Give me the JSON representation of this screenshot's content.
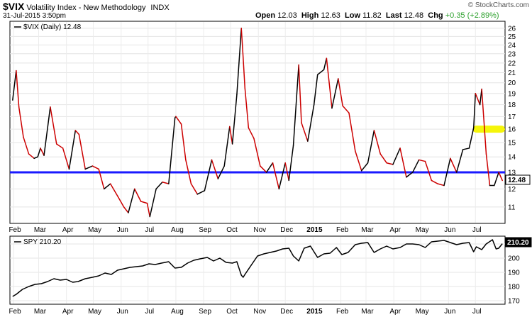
{
  "header": {
    "symbol": "$VIX",
    "description": "Volatility Index - New Methodology",
    "exchange": "INDX",
    "datetime": "31-Jul-2015 3:50pm",
    "open_label": "Open",
    "open": "12.03",
    "high_label": "High",
    "high": "12.63",
    "low_label": "Low",
    "low": "11.82",
    "last_label": "Last",
    "last": "12.48",
    "chg_label": "Chg",
    "chg": "+0.35 (+2.89%)",
    "brand": "© StockCharts.com"
  },
  "chart_data": [
    {
      "type": "line",
      "legend": "$VIX (Daily) 12.48",
      "last_value": "12.48",
      "scale": "log",
      "ylim": [
        10.2,
        26.8
      ],
      "y_ticks": [
        "11",
        "12",
        "13",
        "14",
        "15",
        "16",
        "17",
        "18",
        "19",
        "20",
        "21",
        "22",
        "23",
        "24",
        "25",
        "26"
      ],
      "x_labels": [
        "Feb",
        "Mar",
        "Apr",
        "May",
        "Jun",
        "Jul",
        "Aug",
        "Sep",
        "Oct",
        "Nov",
        "Dec",
        "2015",
        "Feb",
        "Mar",
        "Apr",
        "May",
        "Jun",
        "Jul"
      ],
      "line_colors": {
        "up": "#000000",
        "down": "#cc0000"
      },
      "horizontal_line": {
        "value": 13,
        "color": "#1a1aff"
      },
      "highlight": {
        "value": 16.0,
        "color": "#f5f50a"
      },
      "x": [
        "2014-01-31",
        "2014-02-04",
        "2014-02-07",
        "2014-02-12",
        "2014-02-18",
        "2014-02-24",
        "2014-02-28",
        "2014-03-03",
        "2014-03-07",
        "2014-03-14",
        "2014-03-21",
        "2014-03-28",
        "2014-04-04",
        "2014-04-11",
        "2014-04-15",
        "2014-04-22",
        "2014-04-30",
        "2014-05-07",
        "2014-05-13",
        "2014-05-20",
        "2014-05-28",
        "2014-06-04",
        "2014-06-09",
        "2014-06-16",
        "2014-06-23",
        "2014-06-30",
        "2014-07-03",
        "2014-07-10",
        "2014-07-17",
        "2014-07-24",
        "2014-07-31",
        "2014-08-01",
        "2014-08-07",
        "2014-08-12",
        "2014-08-18",
        "2014-08-25",
        "2014-09-02",
        "2014-09-10",
        "2014-09-17",
        "2014-09-24",
        "2014-09-30",
        "2014-10-03",
        "2014-10-08",
        "2014-10-13",
        "2014-10-15",
        "2014-10-17",
        "2014-10-21",
        "2014-10-27",
        "2014-11-03",
        "2014-11-10",
        "2014-11-17",
        "2014-11-24",
        "2014-12-01",
        "2014-12-05",
        "2014-12-10",
        "2014-12-16",
        "2014-12-19",
        "2014-12-26",
        "2015-01-02",
        "2015-01-06",
        "2015-01-13",
        "2015-01-16",
        "2015-01-22",
        "2015-01-29",
        "2015-02-03",
        "2015-02-10",
        "2015-02-17",
        "2015-02-24",
        "2015-03-03",
        "2015-03-10",
        "2015-03-17",
        "2015-03-24",
        "2015-03-31",
        "2015-04-08",
        "2015-04-15",
        "2015-04-22",
        "2015-04-29",
        "2015-05-06",
        "2015-05-13",
        "2015-05-20",
        "2015-05-27",
        "2015-06-03",
        "2015-06-10",
        "2015-06-17",
        "2015-06-24",
        "2015-06-29",
        "2015-07-01",
        "2015-07-06",
        "2015-07-08",
        "2015-07-13",
        "2015-07-17",
        "2015-07-22",
        "2015-07-27",
        "2015-07-31"
      ],
      "values": [
        18.4,
        21.2,
        17.8,
        15.4,
        14.2,
        13.9,
        14.0,
        14.6,
        14.1,
        17.8,
        14.9,
        14.6,
        13.2,
        15.9,
        15.6,
        13.2,
        13.4,
        13.2,
        12.0,
        12.3,
        11.6,
        11.0,
        10.7,
        12.0,
        11.3,
        11.2,
        10.5,
        12.0,
        12.4,
        12.3,
        16.9,
        17.0,
        16.4,
        13.8,
        12.3,
        11.7,
        11.9,
        13.8,
        12.6,
        13.4,
        16.2,
        14.9,
        18.9,
        26.0,
        22.6,
        19.5,
        16.1,
        15.3,
        13.4,
        13.0,
        13.6,
        12.0,
        13.6,
        12.5,
        14.8,
        21.8,
        16.5,
        15.1,
        18.0,
        20.8,
        21.3,
        22.5,
        17.7,
        20.4,
        17.9,
        17.3,
        14.4,
        13.1,
        13.6,
        15.9,
        14.2,
        13.6,
        13.5,
        14.6,
        12.7,
        13.0,
        13.8,
        13.7,
        12.5,
        12.3,
        12.2,
        13.9,
        13.0,
        14.5,
        14.6,
        16.1,
        19.0,
        18.0,
        19.4,
        14.2,
        12.2,
        12.2,
        13.0,
        12.5
      ]
    },
    {
      "type": "line",
      "legend": "SPY 210.20",
      "last_value": "210.20",
      "ylim": [
        168,
        215
      ],
      "y_ticks": [
        "170",
        "180",
        "190",
        "200",
        "210"
      ],
      "x_labels": [
        "Feb",
        "Mar",
        "Apr",
        "May",
        "Jun",
        "Jul",
        "Aug",
        "Sep",
        "Oct",
        "Nov",
        "Dec",
        "2015",
        "Feb",
        "Mar",
        "Apr",
        "May",
        "Jun",
        "Jul"
      ],
      "line_color": "#000000",
      "x": [
        "2014-01-31",
        "2014-02-04",
        "2014-02-11",
        "2014-02-18",
        "2014-02-25",
        "2014-03-04",
        "2014-03-11",
        "2014-03-18",
        "2014-03-25",
        "2014-04-01",
        "2014-04-08",
        "2014-04-14",
        "2014-04-22",
        "2014-04-30",
        "2014-05-07",
        "2014-05-14",
        "2014-05-21",
        "2014-05-28",
        "2014-06-04",
        "2014-06-11",
        "2014-06-18",
        "2014-06-25",
        "2014-07-02",
        "2014-07-09",
        "2014-07-16",
        "2014-07-24",
        "2014-07-31",
        "2014-08-07",
        "2014-08-14",
        "2014-08-21",
        "2014-08-28",
        "2014-09-05",
        "2014-09-12",
        "2014-09-19",
        "2014-09-26",
        "2014-10-03",
        "2014-10-08",
        "2014-10-13",
        "2014-10-15",
        "2014-10-17",
        "2014-10-24",
        "2014-10-31",
        "2014-11-07",
        "2014-11-14",
        "2014-11-21",
        "2014-11-28",
        "2014-12-05",
        "2014-12-10",
        "2014-12-16",
        "2014-12-22",
        "2014-12-29",
        "2015-01-06",
        "2015-01-13",
        "2015-01-20",
        "2015-01-27",
        "2015-02-02",
        "2015-02-09",
        "2015-02-17",
        "2015-02-24",
        "2015-03-03",
        "2015-03-10",
        "2015-03-17",
        "2015-03-24",
        "2015-03-31",
        "2015-04-08",
        "2015-04-15",
        "2015-04-22",
        "2015-04-29",
        "2015-05-06",
        "2015-05-13",
        "2015-05-20",
        "2015-05-27",
        "2015-06-03",
        "2015-06-10",
        "2015-06-17",
        "2015-06-24",
        "2015-06-29",
        "2015-07-02",
        "2015-07-08",
        "2015-07-13",
        "2015-07-20",
        "2015-07-24",
        "2015-07-27",
        "2015-07-31"
      ],
      "values": [
        173.0,
        174.5,
        178.0,
        180.0,
        181.5,
        182.0,
        183.5,
        185.5,
        184.5,
        185.0,
        183.0,
        183.5,
        185.5,
        186.5,
        187.5,
        189.5,
        188.5,
        191.5,
        192.5,
        193.5,
        194.0,
        194.5,
        196.0,
        195.5,
        196.5,
        197.5,
        193.0,
        193.5,
        196.5,
        198.5,
        199.5,
        200.5,
        198.0,
        200.0,
        197.0,
        196.5,
        197.5,
        188.0,
        186.5,
        188.5,
        195.0,
        201.5,
        203.0,
        204.0,
        205.0,
        206.5,
        207.0,
        201.5,
        198.0,
        207.0,
        208.5,
        200.5,
        203.0,
        203.5,
        207.5,
        202.5,
        204.0,
        209.5,
        210.5,
        211.0,
        204.0,
        206.5,
        208.5,
        206.5,
        207.5,
        210.0,
        210.0,
        209.5,
        207.5,
        211.5,
        212.0,
        212.5,
        211.0,
        209.5,
        210.5,
        211.0,
        204.5,
        208.0,
        206.0,
        210.0,
        213.0,
        206.5,
        207.0,
        210.2
      ]
    }
  ]
}
